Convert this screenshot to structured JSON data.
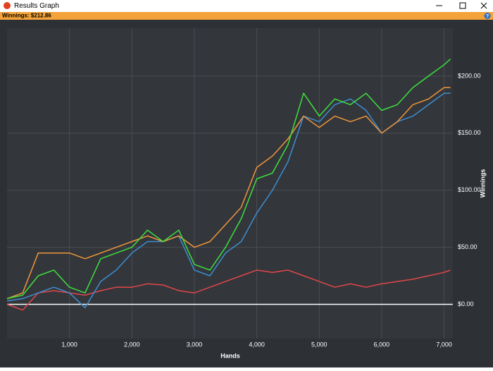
{
  "window": {
    "title": "Results Graph"
  },
  "toolbar": {
    "label": "Winnings: $212.86",
    "help": "?"
  },
  "chart_data": {
    "type": "line",
    "x_label": "Hands",
    "y_label": "Winnings",
    "x": [
      0,
      250,
      500,
      750,
      1000,
      1250,
      1500,
      1750,
      2000,
      2250,
      2500,
      2750,
      3000,
      3250,
      3500,
      3750,
      4000,
      4250,
      4500,
      4750,
      5000,
      5250,
      5500,
      5750,
      6000,
      6250,
      6500,
      6750,
      7000,
      7100
    ],
    "series": [
      {
        "color": "#e0474c",
        "values": [
          0,
          -5,
          10,
          12,
          10,
          8,
          12,
          15,
          15,
          18,
          17,
          12,
          10,
          15,
          20,
          25,
          30,
          28,
          30,
          25,
          20,
          15,
          18,
          15,
          18,
          20,
          22,
          25,
          28,
          30
        ]
      },
      {
        "color": "#3d8fd1",
        "values": [
          3,
          5,
          10,
          15,
          10,
          -3,
          20,
          30,
          45,
          55,
          55,
          60,
          30,
          25,
          45,
          55,
          80,
          100,
          125,
          165,
          160,
          175,
          180,
          170,
          150,
          160,
          165,
          175,
          185,
          185
        ]
      },
      {
        "color": "#f0963a",
        "values": [
          5,
          10,
          45,
          45,
          45,
          40,
          45,
          50,
          55,
          60,
          55,
          60,
          50,
          55,
          70,
          85,
          120,
          130,
          145,
          165,
          155,
          165,
          160,
          165,
          150,
          160,
          175,
          180,
          190,
          190
        ]
      },
      {
        "color": "#3ee03e",
        "values": [
          5,
          8,
          25,
          30,
          15,
          10,
          40,
          45,
          50,
          65,
          55,
          65,
          35,
          30,
          50,
          75,
          110,
          115,
          140,
          185,
          165,
          180,
          175,
          185,
          170,
          175,
          190,
          200,
          210,
          215
        ]
      }
    ],
    "xlim": [
      0,
      7140
    ],
    "ylim": [
      -30,
      242
    ],
    "xticks": [
      {
        "value": 1000,
        "label": "1,000"
      },
      {
        "value": 2000,
        "label": "2,000"
      },
      {
        "value": 3000,
        "label": "3,000"
      },
      {
        "value": 4000,
        "label": "4,000"
      },
      {
        "value": 5000,
        "label": "5,000"
      },
      {
        "value": 6000,
        "label": "6,000"
      },
      {
        "value": 7000,
        "label": "7,000"
      }
    ],
    "yticks": [
      {
        "value": 0,
        "label": "$0.00"
      },
      {
        "value": 50,
        "label": "$50.00"
      },
      {
        "value": 100,
        "label": "$100.00"
      },
      {
        "value": 150,
        "label": "$150.00"
      },
      {
        "value": 200,
        "label": "$200.00"
      }
    ],
    "grid": true
  }
}
